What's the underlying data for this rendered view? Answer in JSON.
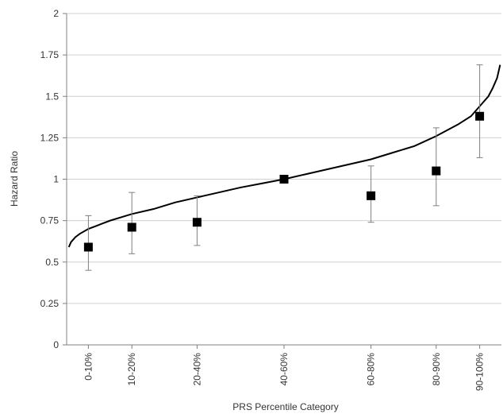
{
  "chart_data": {
    "type": "scatter",
    "title": "",
    "xlabel": "PRS Percentile Category",
    "ylabel": "Hazard Ratio",
    "ylim": [
      0,
      2
    ],
    "yticks": [
      0,
      0.25,
      0.5,
      0.75,
      1,
      1.25,
      1.5,
      1.75,
      2
    ],
    "ytick_labels": [
      "0",
      "0.25",
      "0.5",
      "0.75",
      "1",
      "1.25",
      "1.5",
      "1.75",
      "2"
    ],
    "xlim": [
      0,
      100
    ],
    "grid": "horizontal",
    "legend": "none",
    "categories": [
      {
        "label": "0-10%",
        "midpoint": 5,
        "hr": 0.59,
        "lower": 0.45,
        "upper": 0.78
      },
      {
        "label": "10-20%",
        "midpoint": 15,
        "hr": 0.71,
        "lower": 0.55,
        "upper": 0.92
      },
      {
        "label": "20-40%",
        "midpoint": 30,
        "hr": 0.74,
        "lower": 0.6,
        "upper": 0.9
      },
      {
        "label": "40-60%",
        "midpoint": 50,
        "hr": 1.0,
        "lower": 1.0,
        "upper": 1.0
      },
      {
        "label": "60-80%",
        "midpoint": 70,
        "hr": 0.9,
        "lower": 0.74,
        "upper": 1.08
      },
      {
        "label": "80-90%",
        "midpoint": 85,
        "hr": 1.05,
        "lower": 0.84,
        "upper": 1.31
      },
      {
        "label": "90-100%",
        "midpoint": 95,
        "hr": 1.38,
        "lower": 1.13,
        "upper": 1.69
      }
    ],
    "curve": {
      "x": [
        0.5,
        1,
        2,
        3,
        5,
        7,
        10,
        15,
        20,
        25,
        30,
        35,
        40,
        45,
        50,
        55,
        60,
        65,
        70,
        75,
        80,
        85,
        90,
        93,
        95,
        97,
        98,
        99,
        99.7
      ],
      "y": [
        0.59,
        0.62,
        0.65,
        0.67,
        0.7,
        0.72,
        0.75,
        0.79,
        0.82,
        0.86,
        0.89,
        0.92,
        0.95,
        0.975,
        1.0,
        1.03,
        1.06,
        1.09,
        1.12,
        1.16,
        1.2,
        1.26,
        1.33,
        1.38,
        1.44,
        1.5,
        1.55,
        1.61,
        1.69
      ]
    },
    "colors": {
      "marker": "#000000",
      "curve": "#000000",
      "error_bar": "#808080",
      "grid": "#d0d0d0"
    }
  }
}
